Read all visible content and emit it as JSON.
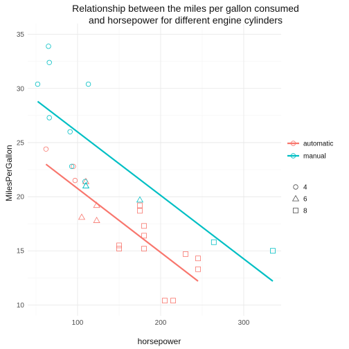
{
  "chart_data": {
    "type": "scatter",
    "title_lines": [
      "Relationship between the miles per gallon consumed",
      "and horsepower for different engine cylinders"
    ],
    "xlabel": "horsepower",
    "ylabel": "MilesPerGallon",
    "xlim": [
      40,
      345
    ],
    "ylim": [
      9,
      36
    ],
    "xticks": [
      100,
      200,
      300
    ],
    "yticks": [
      10,
      15,
      20,
      25,
      30,
      35
    ],
    "grid": true,
    "legend_position": "right",
    "colors": {
      "automatic": "#F8766D",
      "manual": "#00BFC4"
    },
    "transmission_legend": [
      {
        "key": "automatic",
        "label": "automatic"
      },
      {
        "key": "manual",
        "label": "manual"
      }
    ],
    "cylinder_legend": [
      {
        "shape": "circle",
        "label": "4"
      },
      {
        "shape": "triangle",
        "label": "6"
      },
      {
        "shape": "square",
        "label": "8"
      }
    ],
    "points": [
      {
        "x": 62,
        "y": 24.4,
        "am": "automatic",
        "cyl": "4"
      },
      {
        "x": 95,
        "y": 22.8,
        "am": "automatic",
        "cyl": "4"
      },
      {
        "x": 97,
        "y": 21.5,
        "am": "automatic",
        "cyl": "4"
      },
      {
        "x": 110,
        "y": 21.4,
        "am": "automatic",
        "cyl": "6"
      },
      {
        "x": 105,
        "y": 18.1,
        "am": "automatic",
        "cyl": "6"
      },
      {
        "x": 123,
        "y": 19.2,
        "am": "automatic",
        "cyl": "6"
      },
      {
        "x": 123,
        "y": 17.8,
        "am": "automatic",
        "cyl": "6"
      },
      {
        "x": 175,
        "y": 18.7,
        "am": "automatic",
        "cyl": "8"
      },
      {
        "x": 245,
        "y": 14.3,
        "am": "automatic",
        "cyl": "8"
      },
      {
        "x": 180,
        "y": 16.4,
        "am": "automatic",
        "cyl": "8"
      },
      {
        "x": 180,
        "y": 17.3,
        "am": "automatic",
        "cyl": "8"
      },
      {
        "x": 180,
        "y": 15.2,
        "am": "automatic",
        "cyl": "8"
      },
      {
        "x": 205,
        "y": 10.4,
        "am": "automatic",
        "cyl": "8"
      },
      {
        "x": 215,
        "y": 10.4,
        "am": "automatic",
        "cyl": "8"
      },
      {
        "x": 230,
        "y": 14.7,
        "am": "automatic",
        "cyl": "8"
      },
      {
        "x": 150,
        "y": 15.5,
        "am": "automatic",
        "cyl": "8"
      },
      {
        "x": 150,
        "y": 15.2,
        "am": "automatic",
        "cyl": "8"
      },
      {
        "x": 245,
        "y": 13.3,
        "am": "automatic",
        "cyl": "8"
      },
      {
        "x": 175,
        "y": 19.2,
        "am": "automatic",
        "cyl": "8"
      },
      {
        "x": 93,
        "y": 22.8,
        "am": "manual",
        "cyl": "4"
      },
      {
        "x": 66,
        "y": 32.4,
        "am": "manual",
        "cyl": "4"
      },
      {
        "x": 52,
        "y": 30.4,
        "am": "manual",
        "cyl": "4"
      },
      {
        "x": 65,
        "y": 33.9,
        "am": "manual",
        "cyl": "4"
      },
      {
        "x": 66,
        "y": 27.3,
        "am": "manual",
        "cyl": "4"
      },
      {
        "x": 91,
        "y": 26.0,
        "am": "manual",
        "cyl": "4"
      },
      {
        "x": 113,
        "y": 30.4,
        "am": "manual",
        "cyl": "4"
      },
      {
        "x": 109,
        "y": 21.4,
        "am": "manual",
        "cyl": "4"
      },
      {
        "x": 110,
        "y": 21.0,
        "am": "manual",
        "cyl": "6"
      },
      {
        "x": 110,
        "y": 21.0,
        "am": "manual",
        "cyl": "6"
      },
      {
        "x": 175,
        "y": 19.7,
        "am": "manual",
        "cyl": "6"
      },
      {
        "x": 264,
        "y": 15.8,
        "am": "manual",
        "cyl": "8"
      },
      {
        "x": 335,
        "y": 15.0,
        "am": "manual",
        "cyl": "8"
      }
    ],
    "fit_lines": [
      {
        "am": "automatic",
        "x": [
          62,
          245
        ],
        "y": [
          23.0,
          12.2
        ]
      },
      {
        "am": "manual",
        "x": [
          52,
          335
        ],
        "y": [
          28.8,
          12.2
        ]
      }
    ]
  }
}
